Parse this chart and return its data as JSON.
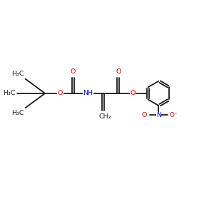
{
  "bg_color": "#ffffff",
  "bond_color": "#1a1a1a",
  "oxygen_color": "#cc0000",
  "nitrogen_color": "#0000bb",
  "carbon_color": "#1a1a1a",
  "figsize": [
    3.0,
    3.0
  ],
  "dpi": 100,
  "xlim": [
    0,
    12
  ],
  "ylim": [
    0,
    12
  ],
  "font_size": 6.8,
  "lw": 1.3,
  "ring_r": 0.72
}
